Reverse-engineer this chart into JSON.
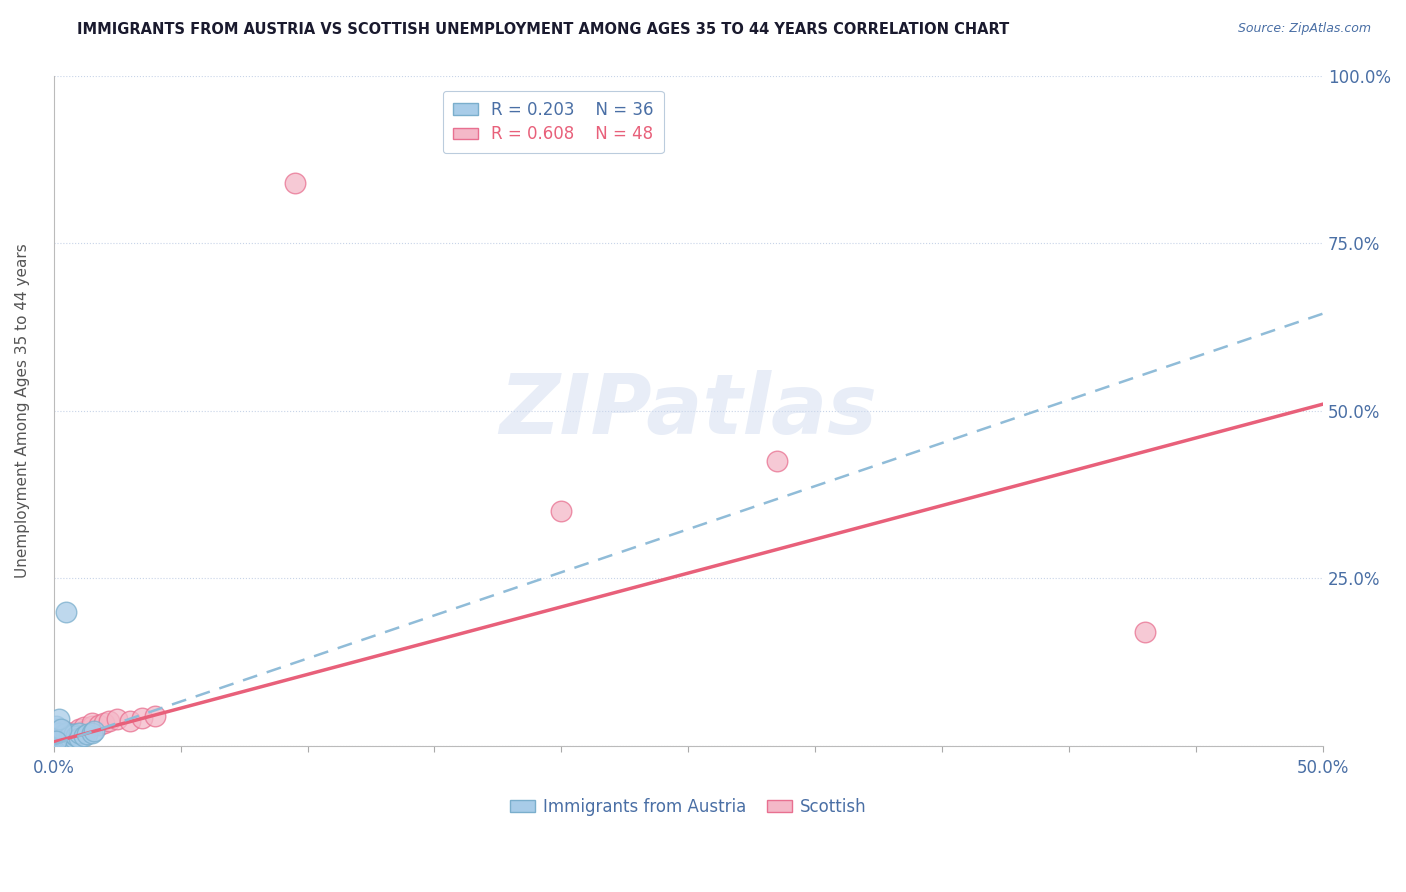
{
  "title": "IMMIGRANTS FROM AUSTRIA VS SCOTTISH UNEMPLOYMENT AMONG AGES 35 TO 44 YEARS CORRELATION CHART",
  "source": "Source: ZipAtlas.com",
  "ylabel": "Unemployment Among Ages 35 to 44 years",
  "xlim": [
    0.0,
    0.5
  ],
  "ylim": [
    0.0,
    1.0
  ],
  "legend_blue_R": "R = 0.203",
  "legend_blue_N": "N = 36",
  "legend_pink_R": "R = 0.608",
  "legend_pink_N": "N = 48",
  "legend_label_blue": "Immigrants from Austria",
  "legend_label_pink": "Scottish",
  "blue_color": "#a8cce8",
  "pink_color": "#f4b8c8",
  "blue_edge_color": "#7aaecc",
  "pink_edge_color": "#e87090",
  "blue_line_color": "#90bcd8",
  "pink_line_color": "#e8607a",
  "blue_scatter": [
    [
      0.0005,
      0.005
    ],
    [
      0.001,
      0.01
    ],
    [
      0.001,
      0.015
    ],
    [
      0.001,
      0.02
    ],
    [
      0.001,
      0.025
    ],
    [
      0.001,
      0.03
    ],
    [
      0.002,
      0.005
    ],
    [
      0.002,
      0.01
    ],
    [
      0.002,
      0.015
    ],
    [
      0.002,
      0.02
    ],
    [
      0.003,
      0.005
    ],
    [
      0.003,
      0.01
    ],
    [
      0.003,
      0.015
    ],
    [
      0.004,
      0.008
    ],
    [
      0.004,
      0.012
    ],
    [
      0.004,
      0.018
    ],
    [
      0.005,
      0.008
    ],
    [
      0.005,
      0.012
    ],
    [
      0.005,
      0.02
    ],
    [
      0.006,
      0.01
    ],
    [
      0.006,
      0.015
    ],
    [
      0.007,
      0.01
    ],
    [
      0.007,
      0.018
    ],
    [
      0.008,
      0.012
    ],
    [
      0.008,
      0.018
    ],
    [
      0.009,
      0.015
    ],
    [
      0.01,
      0.012
    ],
    [
      0.01,
      0.02
    ],
    [
      0.012,
      0.015
    ],
    [
      0.013,
      0.018
    ],
    [
      0.015,
      0.02
    ],
    [
      0.016,
      0.022
    ],
    [
      0.005,
      0.2
    ],
    [
      0.002,
      0.04
    ],
    [
      0.003,
      0.025
    ],
    [
      0.001,
      0.008
    ]
  ],
  "pink_scatter": [
    [
      0.0005,
      0.005
    ],
    [
      0.001,
      0.005
    ],
    [
      0.001,
      0.008
    ],
    [
      0.001,
      0.012
    ],
    [
      0.001,
      0.015
    ],
    [
      0.001,
      0.02
    ],
    [
      0.002,
      0.005
    ],
    [
      0.002,
      0.008
    ],
    [
      0.002,
      0.012
    ],
    [
      0.002,
      0.015
    ],
    [
      0.002,
      0.018
    ],
    [
      0.002,
      0.022
    ],
    [
      0.003,
      0.008
    ],
    [
      0.003,
      0.012
    ],
    [
      0.003,
      0.015
    ],
    [
      0.003,
      0.018
    ],
    [
      0.004,
      0.01
    ],
    [
      0.004,
      0.015
    ],
    [
      0.004,
      0.018
    ],
    [
      0.004,
      0.022
    ],
    [
      0.005,
      0.01
    ],
    [
      0.005,
      0.015
    ],
    [
      0.005,
      0.02
    ],
    [
      0.006,
      0.01
    ],
    [
      0.006,
      0.015
    ],
    [
      0.006,
      0.02
    ],
    [
      0.007,
      0.012
    ],
    [
      0.007,
      0.018
    ],
    [
      0.008,
      0.015
    ],
    [
      0.008,
      0.02
    ],
    [
      0.009,
      0.018
    ],
    [
      0.01,
      0.02
    ],
    [
      0.01,
      0.025
    ],
    [
      0.012,
      0.022
    ],
    [
      0.012,
      0.028
    ],
    [
      0.015,
      0.03
    ],
    [
      0.015,
      0.035
    ],
    [
      0.018,
      0.032
    ],
    [
      0.02,
      0.035
    ],
    [
      0.022,
      0.038
    ],
    [
      0.025,
      0.04
    ],
    [
      0.03,
      0.038
    ],
    [
      0.035,
      0.042
    ],
    [
      0.04,
      0.045
    ],
    [
      0.095,
      0.84
    ],
    [
      0.2,
      0.35
    ],
    [
      0.285,
      0.425
    ],
    [
      0.43,
      0.17
    ]
  ],
  "pink_line": {
    "x0": 0.0,
    "y0": 0.006,
    "x1": 0.5,
    "y1": 0.51
  },
  "blue_line": {
    "x0": 0.0,
    "y0": 0.002,
    "x1": 0.5,
    "y1": 0.645
  },
  "watermark": "ZIPatlas",
  "background_color": "#ffffff",
  "grid_color": "#c8d4e8",
  "title_color": "#1a1a2e",
  "source_color": "#4a6fa5",
  "tick_color": "#4a6fa5",
  "ylabel_color": "#555555"
}
